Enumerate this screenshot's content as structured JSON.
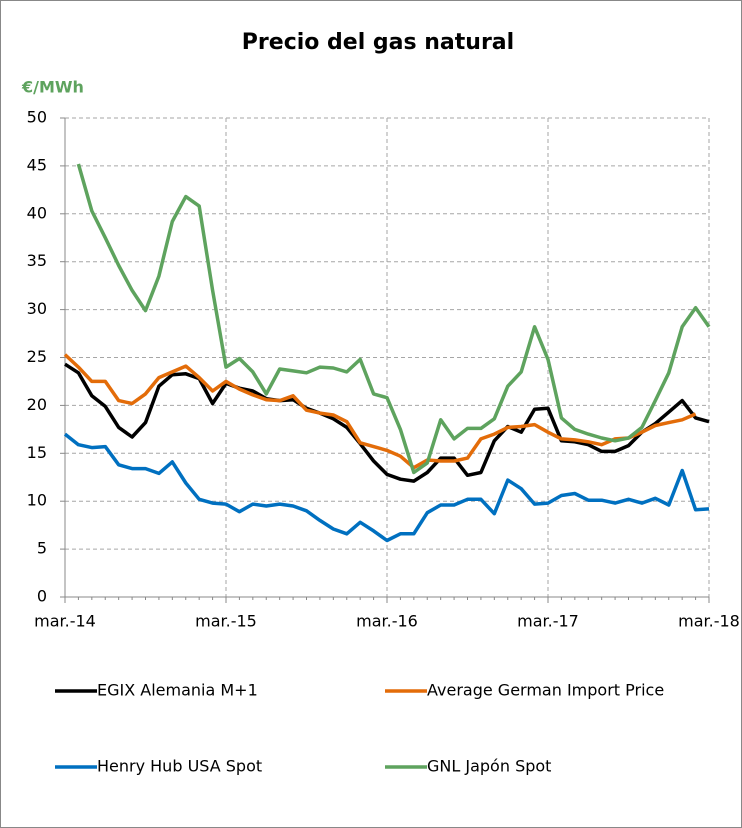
{
  "chart_data": {
    "type": "line",
    "title": "Precio del gas natural",
    "y_label": "€/MWh",
    "categories": [
      "mar.-14",
      null,
      null,
      null,
      null,
      null,
      null,
      null,
      null,
      null,
      null,
      null,
      "mar.-15",
      null,
      null,
      null,
      null,
      null,
      null,
      null,
      null,
      null,
      null,
      null,
      "mar.-16",
      null,
      null,
      null,
      null,
      null,
      null,
      null,
      null,
      null,
      null,
      null,
      "mar.-17",
      null,
      null,
      null,
      null,
      null,
      null,
      null,
      null,
      null,
      null,
      null,
      "mar.-18"
    ],
    "ylim": [
      0,
      50
    ],
    "yticks": [
      0,
      5,
      10,
      15,
      20,
      25,
      30,
      35,
      40,
      45,
      50
    ],
    "grid": true,
    "legend": "bottom",
    "series": [
      {
        "name": "EGIX Alemania M+1",
        "color": "#000000",
        "values": [
          24.3,
          23.4,
          21,
          19.9,
          17.7,
          16.7,
          18.2,
          22,
          23.2,
          23.3,
          22.8,
          20.2,
          22.3,
          21.8,
          21.5,
          20.7,
          20.5,
          20.6,
          19.7,
          19.2,
          18.6,
          17.7,
          16,
          14.2,
          12.8,
          12.3,
          12.1,
          13,
          14.5,
          14.5,
          12.7,
          13,
          16.3,
          17.8,
          17.2,
          19.6,
          19.7,
          16.3,
          16.2,
          15.9,
          15.2,
          15.2,
          15.8,
          17.2,
          18.1,
          19.3,
          20.5,
          18.7,
          18.3
        ]
      },
      {
        "name": "Average German Import Price",
        "color": "#e36c09",
        "values": [
          25.3,
          24,
          22.5,
          22.5,
          20.5,
          20.2,
          21.2,
          22.9,
          23.5,
          24.1,
          22.9,
          21.5,
          22.5,
          21.7,
          21.1,
          20.6,
          20.5,
          21,
          19.5,
          19.2,
          19,
          18.3,
          16.1,
          15.7,
          15.3,
          14.7,
          13.5,
          14.3,
          14.2,
          14.2,
          14.5,
          16.5,
          17,
          17.7,
          17.8,
          18,
          17.2,
          16.5,
          16.4,
          16.2,
          15.9,
          16.5,
          16.6,
          17.2,
          17.9,
          18.2,
          18.5,
          19.1,
          null
        ]
      },
      {
        "name": "Henry Hub USA Spot",
        "color": "#0070c0",
        "values": [
          17,
          15.9,
          15.6,
          15.7,
          13.8,
          13.4,
          13.4,
          12.9,
          14.1,
          11.9,
          10.2,
          9.8,
          9.7,
          8.9,
          9.7,
          9.5,
          9.7,
          9.5,
          9,
          8,
          7.1,
          6.6,
          7.8,
          6.9,
          5.9,
          6.6,
          6.6,
          8.8,
          9.6,
          9.6,
          10.2,
          10.2,
          8.7,
          12.2,
          11.3,
          9.7,
          9.8,
          10.6,
          10.8,
          10.1,
          10.1,
          9.8,
          10.2,
          9.8,
          10.3,
          9.6,
          13.2,
          9.1,
          9.2
        ]
      },
      {
        "name": "GNL Japón Spot",
        "color": "#5ea35e",
        "values": [
          null,
          45.2,
          40.3,
          37.5,
          34.6,
          32,
          29.9,
          33.5,
          39.2,
          41.8,
          40.8,
          32,
          24,
          24.9,
          23.5,
          21.2,
          23.8,
          23.6,
          23.4,
          24,
          23.9,
          23.5,
          24.8,
          21.2,
          20.8,
          17.5,
          13,
          14,
          18.5,
          16.5,
          17.6,
          17.6,
          18.6,
          22,
          23.5,
          28.2,
          24.8,
          18.7,
          17.5,
          17,
          16.6,
          16.3,
          16.6,
          17.7,
          20.5,
          23.4,
          28.2,
          30.2,
          28.2
        ]
      }
    ]
  }
}
